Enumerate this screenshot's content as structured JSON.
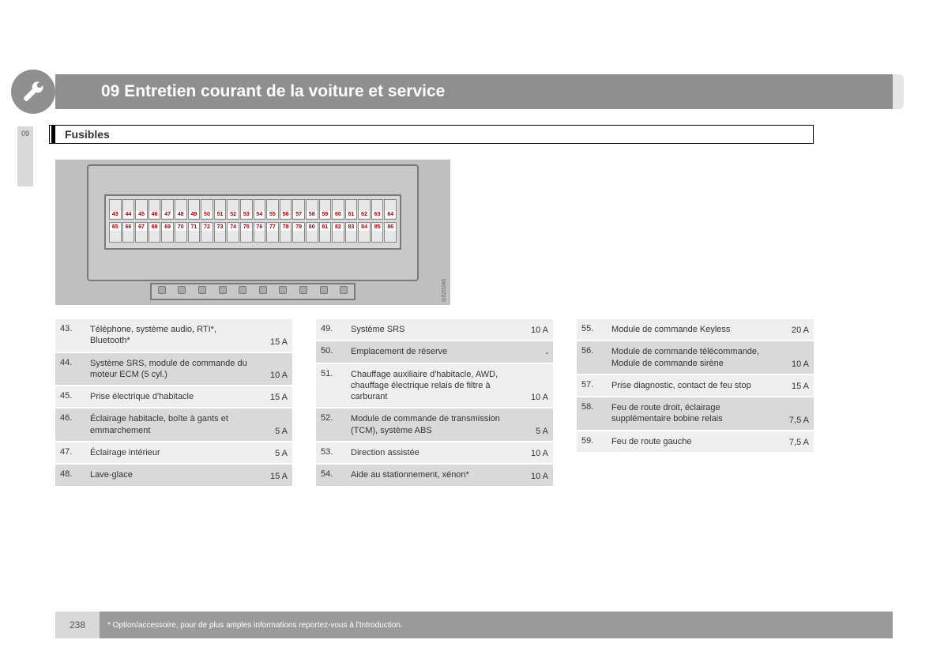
{
  "header": {
    "chapter": "09 Entretien courant de la voiture et service",
    "tab": "09",
    "subtitle": "Fusibles"
  },
  "diagram": {
    "row1": [
      "43",
      "44",
      "45",
      "46",
      "47",
      "48",
      "49",
      "50",
      "51",
      "52",
      "53",
      "54",
      "55",
      "56",
      "57",
      "58",
      "59",
      "60",
      "61",
      "62",
      "63",
      "64"
    ],
    "row2": [
      "65",
      "66",
      "67",
      "68",
      "69",
      "70",
      "71",
      "72",
      "73",
      "74",
      "75",
      "76",
      "77",
      "78",
      "79",
      "80",
      "81",
      "82",
      "83",
      "84",
      "85",
      "86"
    ],
    "code": "G020246",
    "bg_color": "#bfbfbf",
    "num_color": "#b00000"
  },
  "tables": {
    "col1": [
      {
        "n": "43.",
        "d": "Téléphone, système audio, RTI*, Bluetooth*",
        "a": "15 A"
      },
      {
        "n": "44.",
        "d": "Système SRS, module de commande du moteur ECM (5 cyl.)",
        "a": "10 A"
      },
      {
        "n": "45.",
        "d": "Prise électrique d'habita­cle",
        "a": "15 A"
      },
      {
        "n": "46.",
        "d": "Éclairage habitacle, boîte à gants et emmarche­ment",
        "a": "5 A"
      },
      {
        "n": "47.",
        "d": "Éclairage intérieur",
        "a": "5 A"
      },
      {
        "n": "48.",
        "d": "Lave-glace",
        "a": "15 A"
      }
    ],
    "col2": [
      {
        "n": "49.",
        "d": "Système SRS",
        "a": "10 A"
      },
      {
        "n": "50.",
        "d": "Emplacement de réserve",
        "a": "-"
      },
      {
        "n": "51.",
        "d": "Chauffage auxiliaire d'habitacle, AWD, chauf­fage électrique relais de filtre à carburant",
        "a": "10 A"
      },
      {
        "n": "52.",
        "d": "Module de commande de transmission (TCM), système ABS",
        "a": "5 A"
      },
      {
        "n": "53.",
        "d": "Direction assistée",
        "a": "10 A"
      },
      {
        "n": "54.",
        "d": "Aide au stationnement, xénon*",
        "a": "10 A"
      }
    ],
    "col3": [
      {
        "n": "55.",
        "d": "Module de commande Keyless",
        "a": "20 A"
      },
      {
        "n": "56.",
        "d": "Module de commande télécommande, Module de commande sirène",
        "a": "10 A"
      },
      {
        "n": "57.",
        "d": "Prise diagnostic, contact de feu stop",
        "a": "15 A"
      },
      {
        "n": "58.",
        "d": "Feu de route droit, éclai­rage supplémentaire bobine relais",
        "a": "7,5 A"
      },
      {
        "n": "59.",
        "d": "Feu de route gauche",
        "a": "7,5 A"
      }
    ],
    "row_colors": {
      "odd": "#efefef",
      "even": "#d9d9d9"
    }
  },
  "footer": {
    "page": "238",
    "note": "* Option/accessoire, pour de plus amples informations reportez-vous à l'Introduction."
  }
}
